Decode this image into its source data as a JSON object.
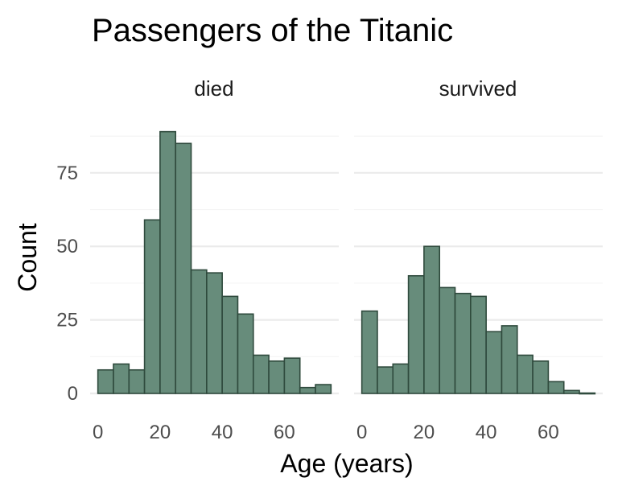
{
  "chart_data": {
    "type": "bar",
    "title": "Passengers of the Titanic",
    "xlabel": "Age (years)",
    "ylabel": "Count",
    "bin_width": 5,
    "x_range": [
      -2.5,
      77.5
    ],
    "ylim": [
      0,
      90
    ],
    "x_ticks": [
      0,
      20,
      40,
      60
    ],
    "y_ticks": [
      0,
      25,
      50,
      75
    ],
    "fill_color": "#678c7b",
    "edge_color": "#2f4a3d",
    "grid": true,
    "panels": [
      {
        "label": "died",
        "bin_starts": [
          0,
          5,
          10,
          15,
          20,
          25,
          30,
          35,
          40,
          45,
          50,
          55,
          60,
          65,
          70
        ],
        "counts": [
          8,
          10,
          8,
          59,
          89,
          85,
          42,
          41,
          33,
          27,
          13,
          11,
          12,
          2,
          3
        ]
      },
      {
        "label": "survived",
        "bin_starts": [
          0,
          5,
          10,
          15,
          20,
          25,
          30,
          35,
          40,
          45,
          50,
          55,
          60,
          65,
          70
        ],
        "counts": [
          28,
          9,
          10,
          40,
          50,
          36,
          34,
          33,
          21,
          23,
          13,
          11,
          4,
          1,
          0
        ]
      }
    ]
  }
}
